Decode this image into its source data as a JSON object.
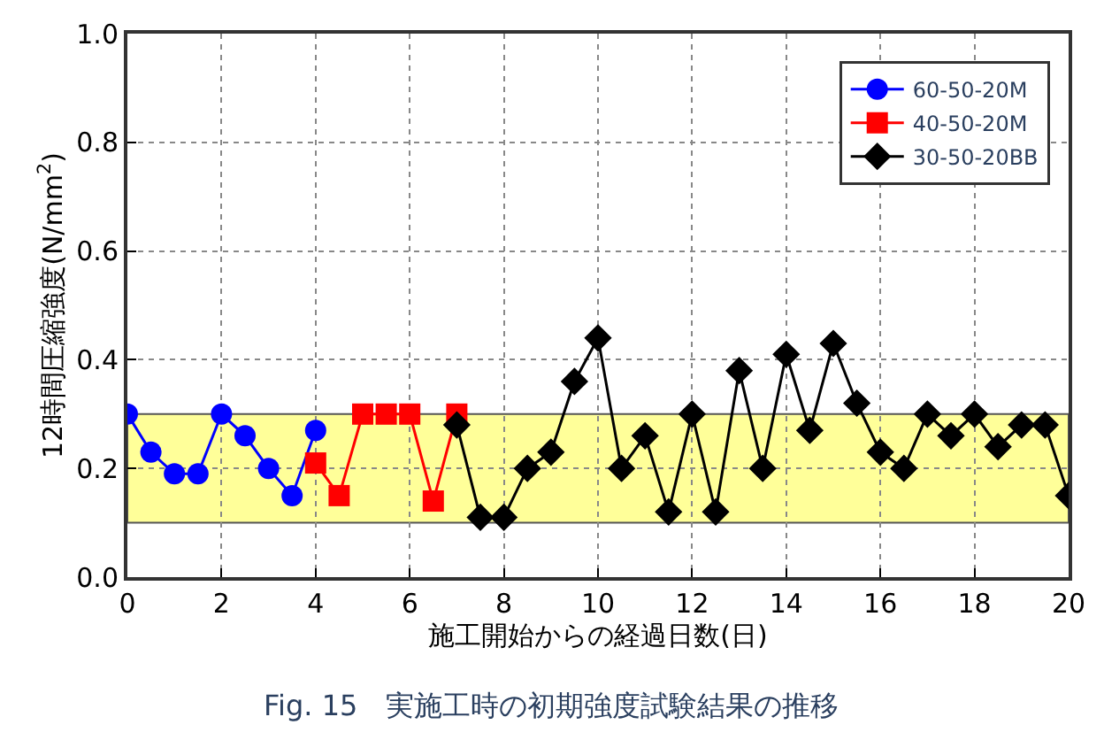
{
  "chart_data": {
    "type": "line",
    "xlabel": "施工開始からの経過日数(日)",
    "ylabel": "12時間圧縮強度(N/mm$^{2}$)",
    "annotations": [
      "Fig. 15　実施工時の初期強度試験結果の推移"
    ],
    "xlim": [
      0,
      20
    ],
    "xticks": [
      0,
      2,
      4,
      6,
      8,
      10,
      12,
      14,
      16,
      18,
      20
    ],
    "ylim": [
      0,
      1
    ],
    "yticks": [
      {
        "value": 0,
        "label": "0.0"
      },
      0.2,
      0.4,
      0.6,
      0.8,
      {
        "value": 1,
        "label": "1.0"
      }
    ],
    "grid": true,
    "legend": "top right",
    "line_style": "solid",
    "bands": [
      {
        "axis": "y",
        "from": 0.1,
        "to": 0.3,
        "color": "#ffff99"
      }
    ],
    "series": [
      {
        "name": "60-50-20M",
        "color": "#0000ff",
        "marker": "circle",
        "x": [
          0,
          0.5,
          1,
          1.5,
          2,
          2.5,
          3,
          3.5,
          4
        ],
        "values": [
          0.3,
          0.23,
          0.19,
          0.19,
          0.3,
          0.26,
          0.2,
          0.15,
          0.27
        ]
      },
      {
        "name": "40-50-20M",
        "color": "#ff0000",
        "marker": "square",
        "x": [
          4,
          4.5,
          5,
          5.5,
          6,
          6.5,
          7
        ],
        "values": [
          0.21,
          0.15,
          0.3,
          0.3,
          0.3,
          0.14,
          0.3
        ]
      },
      {
        "name": "30-50-20BB",
        "color": "#000000",
        "marker": "diamond",
        "x": [
          7,
          7.5,
          8,
          8.5,
          9,
          9.5,
          10,
          10.5,
          11,
          11.5,
          12,
          12.5,
          13,
          13.5,
          14,
          14.5,
          15,
          15.5,
          16,
          16.5,
          17,
          17.5,
          18,
          18.5,
          19,
          19.5,
          20
        ],
        "values": [
          0.28,
          0.11,
          0.11,
          0.2,
          0.23,
          0.36,
          0.44,
          0.2,
          0.26,
          0.12,
          0.3,
          0.12,
          0.38,
          0.2,
          0.41,
          0.27,
          0.43,
          0.32,
          0.23,
          0.2,
          0.3,
          0.26,
          0.3,
          0.24,
          0.28,
          0.28,
          0.15
        ]
      }
    ]
  }
}
